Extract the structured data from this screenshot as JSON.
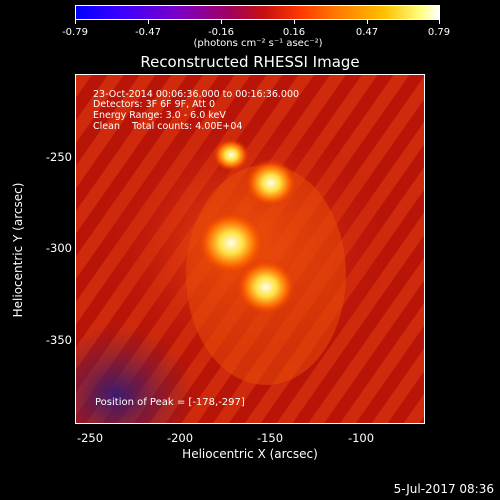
{
  "colorbar": {
    "ticks": [
      "-0.79",
      "-0.47",
      "-0.16",
      "0.16",
      "0.47",
      "0.79"
    ],
    "units": "(photons cm⁻² s⁻¹ asec⁻²)"
  },
  "title": "Reconstructed RHESSI Image",
  "info": {
    "time_range": "23-Oct-2014 00:06:36.000 to 00:16:36.000",
    "detectors": "Detectors: 3F 6F 9F, Att 0",
    "energy": "Energy Range: 3.0 - 6.0 keV",
    "clean": "Clean    Total counts: 4.00E+04"
  },
  "peak": "Position of Peak = [-178,-297]",
  "axes": {
    "xlabel": "Heliocentric X (arcsec)",
    "ylabel": "Heliocentric Y (arcsec)",
    "xticks": [
      "-250",
      "-200",
      "-150",
      "-100"
    ],
    "yticks": [
      "-250",
      "-300",
      "-350"
    ]
  },
  "timestamp": "5-Jul-2017 08:36",
  "colors": {
    "hot_core": "#ffffe0",
    "background_field": "#c01810",
    "low_region": "#402060"
  }
}
